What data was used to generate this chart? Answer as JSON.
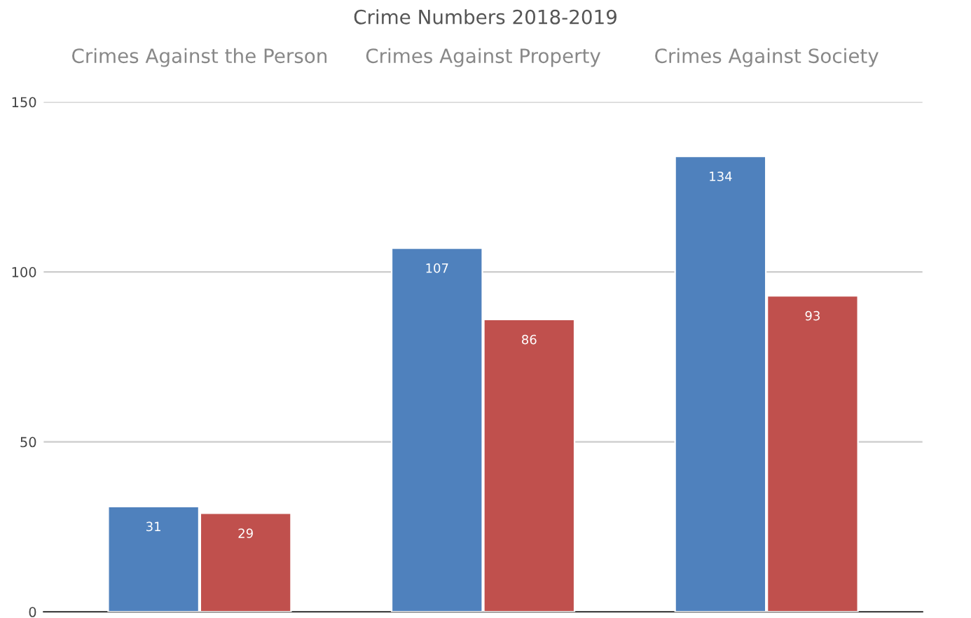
{
  "chart_data": {
    "type": "bar",
    "title": "Crime Numbers 2018-2019",
    "categories": [
      "Crimes Against the Person",
      "Crimes Against Property",
      "Crimes Against Society"
    ],
    "series": [
      {
        "color": "#4f81bd",
        "values": [
          31,
          107,
          134
        ]
      },
      {
        "color": "#c0504d",
        "values": [
          29,
          86,
          93
        ]
      }
    ],
    "ylim": [
      0,
      150
    ],
    "yticks": [
      0,
      50,
      100,
      150
    ],
    "grid": "y",
    "data_labels": true
  }
}
